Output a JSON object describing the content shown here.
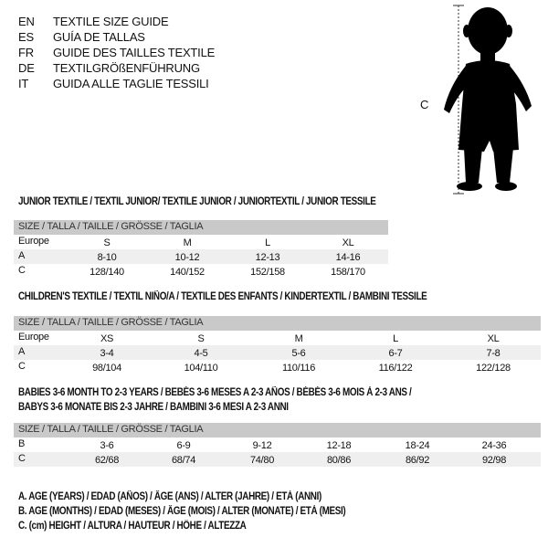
{
  "languages": [
    {
      "code": "EN",
      "text": "TEXTILE SIZE GUIDE"
    },
    {
      "code": "ES",
      "text": "GUÍA DE TALLAS"
    },
    {
      "code": "FR",
      "text": "GUIDE DES TAILLES TEXTILE"
    },
    {
      "code": "DE",
      "text": "TEXTILGRÖßENFÜHRUNG"
    },
    {
      "code": "IT",
      "text": "GUIDA ALLE TAGLIE TESSILI"
    }
  ],
  "figure": {
    "label": "C",
    "icon": "child-silhouette-icon"
  },
  "tables": [
    {
      "title": [
        "JUNIOR TEXTILE / TEXTIL JUNIOR/ TEXTILE JUNIOR / JUNIORTEXTIL / JUNIOR TESSILE"
      ],
      "header": "SIZE / TALLA / TAILLE / GRÖSSE / TAGLIA",
      "rows": [
        {
          "label": "Europe",
          "values": [
            "S",
            "M",
            "L",
            "XL"
          ]
        },
        {
          "label": "A",
          "values": [
            "8-10",
            "10-12",
            "12-13",
            "14-16"
          ]
        },
        {
          "label": "C",
          "values": [
            "128/140",
            "140/152",
            "152/158",
            "158/170"
          ]
        }
      ]
    },
    {
      "title": [
        "CHILDREN'S TEXTILE / TEXTIL NIÑO/A / TEXTILE DES ENFANTS / KINDERTEXTIL / BAMBINI TESSILE"
      ],
      "header": "SIZE / TALLA / TAILLE / GRÖSSE / TAGLIA",
      "rows": [
        {
          "label": "Europe",
          "values": [
            "XS",
            "S",
            "M",
            "L",
            "XL"
          ]
        },
        {
          "label": "A",
          "values": [
            "3-4",
            "4-5",
            "5-6",
            "6-7",
            "7-8"
          ]
        },
        {
          "label": "C",
          "values": [
            "98/104",
            "104/110",
            "110/116",
            "116/122",
            "122/128"
          ]
        }
      ]
    },
    {
      "title": [
        "BABIES 3-6 MONTH TO 2-3 YEARS / BEBÉS 3-6 MESES A 2-3 AÑOS / BÉBÉS 3-6 MOIS À 2-3 ANS /",
        "BABYS 3-6 MONATE BIS 2-3 JAHRE / BAMBINI 3-6 MESI A 2-3 ANNI"
      ],
      "header": "SIZE / TALLA / TAILLE / GRÖSSE / TAGLIA",
      "rows": [
        {
          "label": "B",
          "values": [
            "3-6",
            "6-9",
            "9-12",
            "12-18",
            "18-24",
            "24-36"
          ]
        },
        {
          "label": "C",
          "values": [
            "62/68",
            "68/74",
            "74/80",
            "80/86",
            "86/92",
            "92/98"
          ]
        }
      ]
    }
  ],
  "legend": [
    "A. AGE (YEARS) / EDAD (AÑOS) / ÂGE (ANS) / ALTER (JAHRE) / ETÀ (ANNI)",
    "B. AGE (MONTHS) / EDAD (MESES) / ÂGE (MOIS) / ALTER (MONATE) / ETÀ (MESI)",
    "C. (cm) HEIGHT / ALTURA / HAUTEUR / HÖHE / ALTEZZA"
  ]
}
